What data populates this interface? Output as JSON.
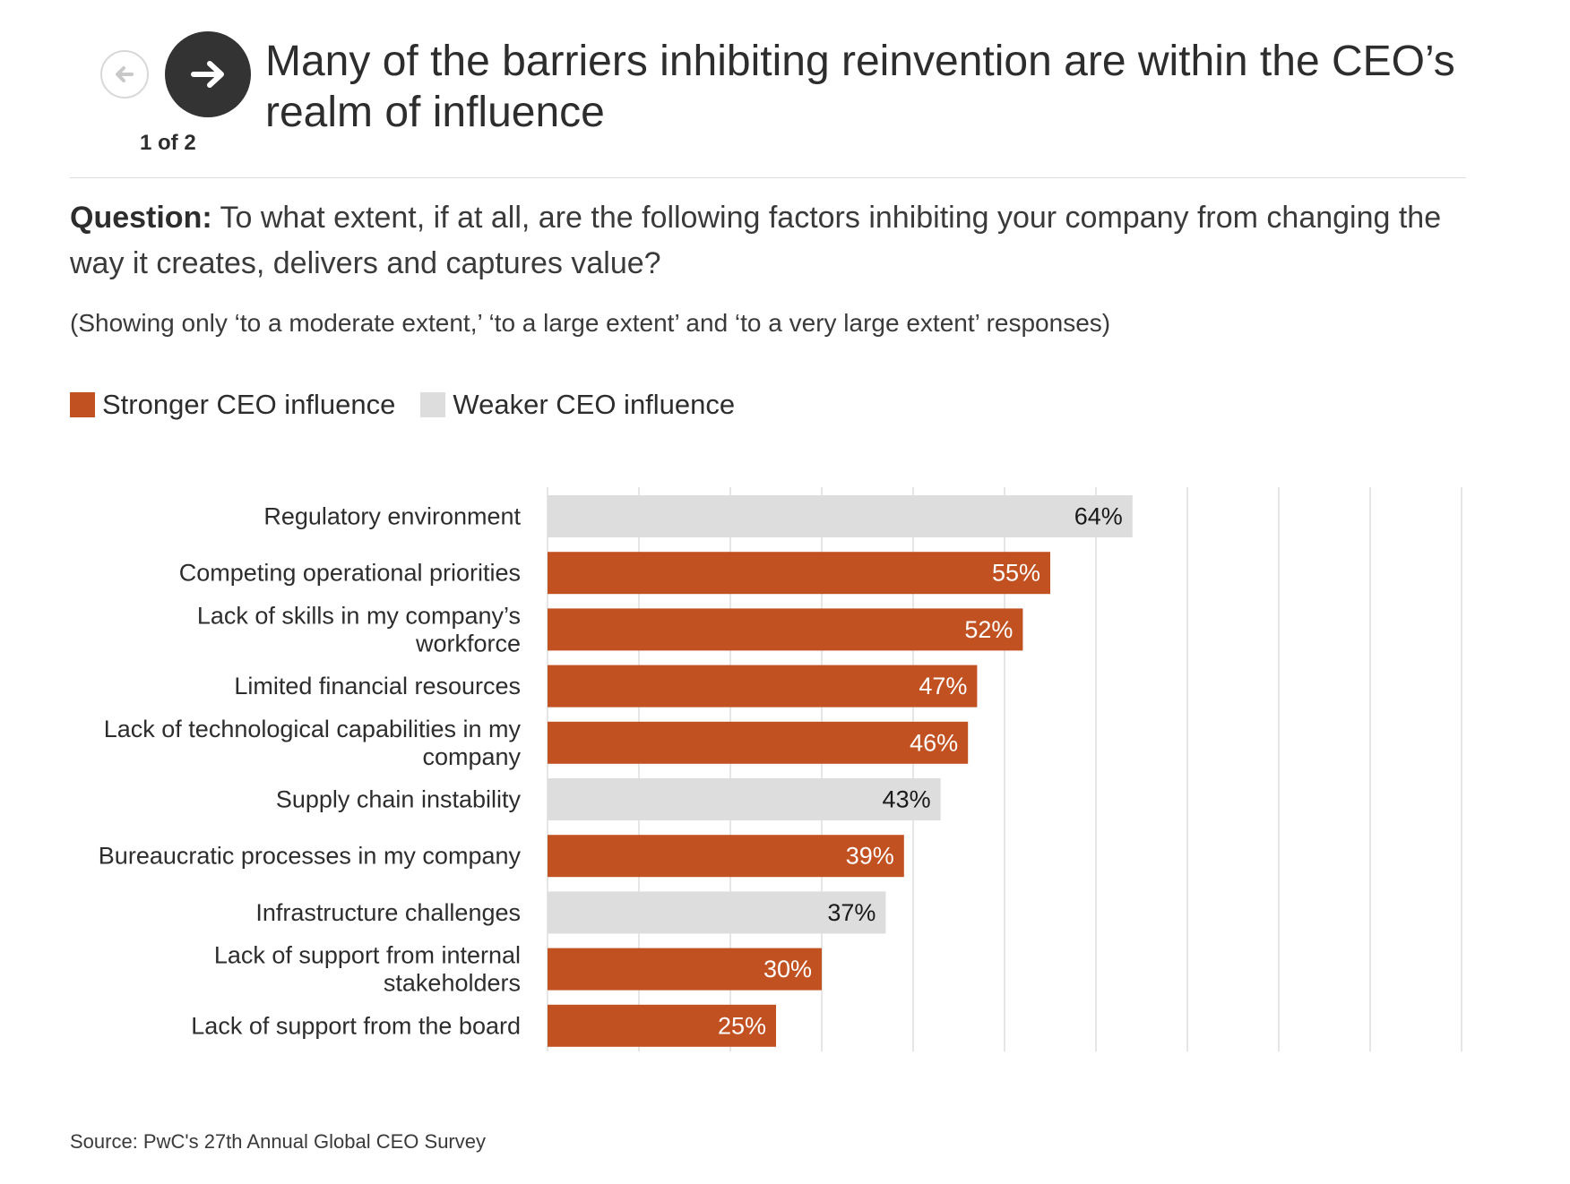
{
  "nav": {
    "counter": "1 of 2",
    "prev_icon": "arrow-left-icon",
    "next_icon": "arrow-right-icon"
  },
  "header": {
    "title": "Many of the barriers inhibiting reinvention are within the CEO’s realm of influence"
  },
  "question": {
    "label": "Question:",
    "text": " To what extent, if at all, are the following factors inhibiting your company from changing the way it creates, delivers and captures value?"
  },
  "note": "(Showing only ‘to a moderate extent,’ ‘to a large extent’ and ‘to a very large extent’ responses)",
  "legend": [
    {
      "label": "Stronger CEO influence",
      "color": "#c25122"
    },
    {
      "label": "Weaker CEO influence",
      "color": "#dddddd"
    }
  ],
  "colors": {
    "stronger": "#c25122",
    "weaker": "#dddddd",
    "grid": "#e6e6e6",
    "label_on_stronger": "#ffffff",
    "label_on_weaker": "#1a1a1a"
  },
  "chart_data": {
    "type": "bar",
    "orientation": "horizontal",
    "xlim": [
      0,
      100
    ],
    "grid": true,
    "legend_position": "top-left",
    "value_suffix": "%",
    "categories": [
      [
        "Regulatory environment"
      ],
      [
        "Competing operational priorities"
      ],
      [
        "Lack of skills in my company’s",
        "workforce"
      ],
      [
        "Limited financial resources"
      ],
      [
        "Lack of technological capabilities in my",
        "company"
      ],
      [
        "Supply chain instability"
      ],
      [
        "Bureaucratic processes in my company"
      ],
      [
        "Infrastructure challenges"
      ],
      [
        "Lack of support from internal",
        "stakeholders"
      ],
      [
        "Lack of support from the board"
      ]
    ],
    "values": [
      64,
      55,
      52,
      47,
      46,
      43,
      39,
      37,
      30,
      25
    ],
    "groups": [
      "weaker",
      "stronger",
      "stronger",
      "stronger",
      "stronger",
      "weaker",
      "stronger",
      "weaker",
      "stronger",
      "stronger"
    ]
  },
  "source": "Source: PwC's 27th Annual Global CEO Survey"
}
